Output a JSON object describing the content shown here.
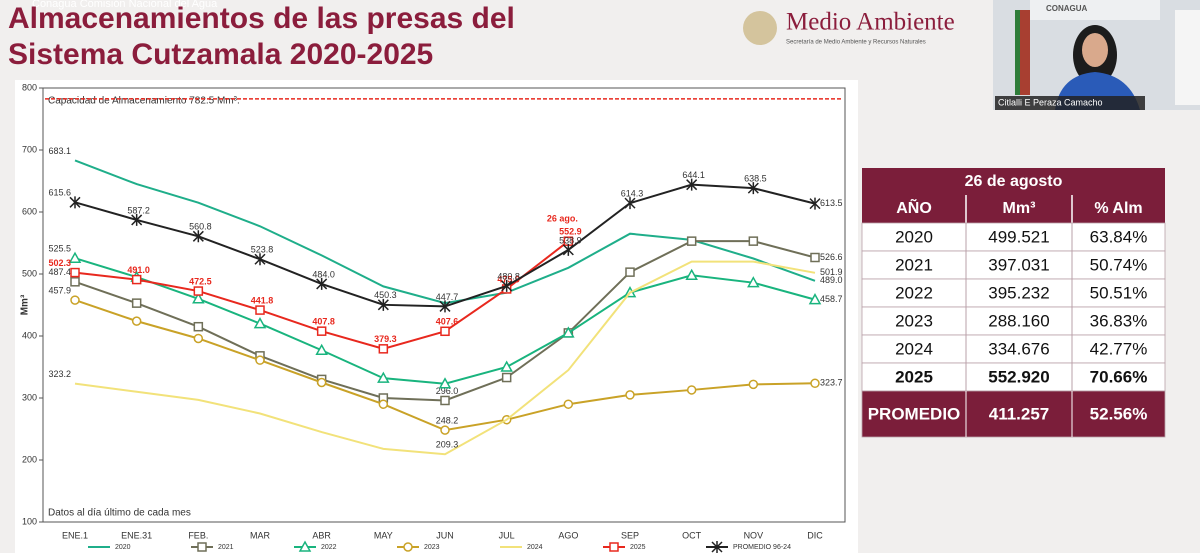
{
  "header": {
    "top_bar": "Conagua Comisión Nacional del Agua",
    "title_line1": "Almacenamientos de las presas del",
    "title_line2": "Sistema Cutzamala 2020-2025",
    "logo": "Medio Ambiente",
    "logo_sub": "Secretaría de Medio Ambiente y Recursos Naturales"
  },
  "video": {
    "name": "Citlalli E Peraza Camacho",
    "brand": "CONAGUA"
  },
  "chart_data": {
    "type": "line",
    "y_label": "Mm³",
    "annotation": "Capacidad de Almacenamiento 782.5 Mm³.",
    "reference_line": 782.5,
    "note": "Datos al día último de cada mes",
    "point_note": "26 ago.",
    "categories": [
      "ENE.1",
      "ENE.31",
      "FEB.",
      "MAR",
      "ABR",
      "MAY",
      "JUN",
      "JUL",
      "AGO",
      "SEP",
      "OCT",
      "NOV",
      "DIC"
    ],
    "ylim": [
      100,
      800
    ],
    "yticks": [
      100,
      200,
      300,
      400,
      500,
      600,
      700,
      800
    ],
    "grid": false,
    "series": [
      {
        "name": "2020",
        "color": "#1fae8a",
        "marker": "none",
        "values": [
          683.1,
          645,
          615,
          577,
          530,
          480,
          453,
          470,
          510,
          565,
          555,
          525,
          489
        ],
        "value_labels": [
          "683.1",
          null,
          null,
          null,
          null,
          null,
          null,
          null,
          null,
          null,
          null,
          null,
          "489.0"
        ]
      },
      {
        "name": "2021",
        "color": "#6f6f58",
        "marker": "square",
        "values": [
          487.4,
          453,
          415,
          368,
          330,
          300,
          296,
          333,
          405,
          503,
          553,
          553,
          526.6
        ],
        "value_labels": [
          "487.4",
          null,
          null,
          null,
          null,
          null,
          "296.0",
          null,
          null,
          null,
          null,
          null,
          "526.6"
        ]
      },
      {
        "name": "2022",
        "color": "#19b47e",
        "marker": "triangle",
        "values": [
          525.5,
          495,
          460,
          420,
          377,
          332,
          323,
          350,
          405,
          470,
          498,
          486,
          458.7
        ],
        "value_labels": [
          "525.5",
          null,
          null,
          null,
          null,
          null,
          null,
          null,
          null,
          null,
          null,
          null,
          "458.7"
        ]
      },
      {
        "name": "2023",
        "color": "#c9a227",
        "marker": "circle",
        "values": [
          457.9,
          424,
          396,
          361,
          325,
          290,
          248.2,
          265,
          290,
          305,
          313,
          322,
          323.7
        ],
        "value_labels": [
          "457.9",
          null,
          null,
          null,
          null,
          null,
          "248.2",
          null,
          null,
          null,
          null,
          null,
          "323.7"
        ]
      },
      {
        "name": "2024",
        "color": "#f2e27a",
        "marker": "none",
        "values": [
          323.2,
          310,
          297,
          275,
          245,
          218,
          209.3,
          265,
          345,
          470,
          520,
          520,
          501.9
        ],
        "value_labels": [
          "323.2",
          null,
          null,
          null,
          null,
          null,
          "209.3",
          null,
          null,
          null,
          null,
          null,
          "501.9"
        ]
      },
      {
        "name": "2025",
        "color": "#e8281e",
        "marker": "square",
        "values": [
          502.3,
          491,
          472.5,
          441.8,
          407.8,
          379.3,
          407.6,
          475.9,
          552.9,
          null,
          null,
          null,
          null
        ],
        "value_labels": [
          "502.3",
          "491.0",
          "472.5",
          "441.8",
          "407.8",
          "379.3",
          "407.6",
          "475.9",
          "552.9",
          null,
          null,
          null,
          null
        ]
      },
      {
        "name": "PROMEDIO 96-24",
        "color": "#222222",
        "marker": "x",
        "values": [
          615.6,
          587.2,
          560.8,
          523.8,
          484,
          450.3,
          447.7,
          480.8,
          538.9,
          614.3,
          644.1,
          638.5,
          613.5
        ],
        "value_labels": [
          "615.6",
          "587.2",
          "560.8",
          "523.8",
          "484.0",
          "450.3",
          "447.7",
          "480.8",
          "538.9",
          "614.3",
          "644.1",
          "638.5",
          "613.5"
        ]
      }
    ]
  },
  "table": {
    "title": "26 de agosto",
    "headers": [
      "AÑO",
      "Mm³",
      "% Alm"
    ],
    "rows": [
      [
        "2020",
        "499.521",
        "63.84%"
      ],
      [
        "2021",
        "397.031",
        "50.74%"
      ],
      [
        "2022",
        "395.232",
        "50.51%"
      ],
      [
        "2023",
        "288.160",
        "36.83%"
      ],
      [
        "2024",
        "334.676",
        "42.77%"
      ],
      [
        "2025",
        "552.920",
        "70.66%"
      ],
      [
        "PROMEDIO",
        "411.257",
        "52.56%"
      ]
    ]
  }
}
